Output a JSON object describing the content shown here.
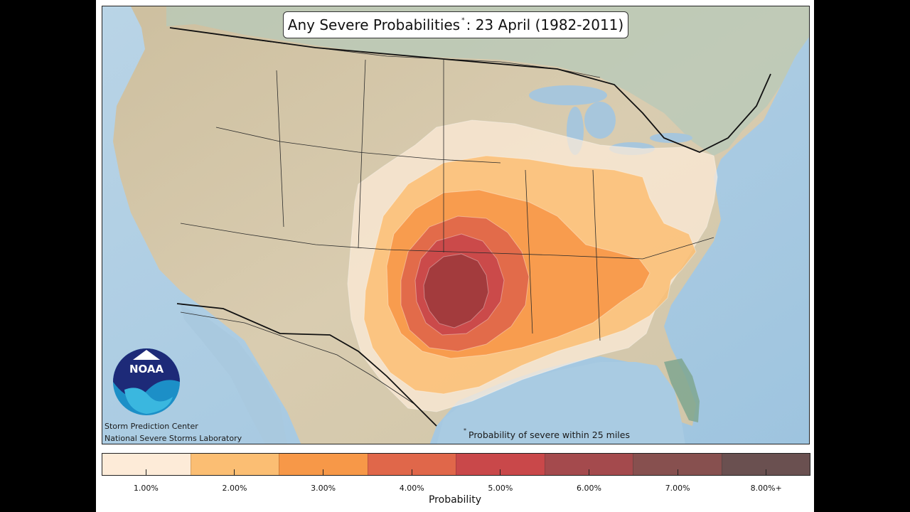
{
  "title": {
    "prefix": "Any Severe Probabilities",
    "marker": "*",
    "suffix": ": 23 April (1982-2011)"
  },
  "credits": {
    "line1": "Storm Prediction Center",
    "line2": "National Severe Storms Laboratory"
  },
  "logo": {
    "text": "NOAA",
    "icon": "noaa-logo"
  },
  "footnote": {
    "marker": "*",
    "text": "Probability of severe within 25 miles"
  },
  "colorbar": {
    "title": "Probability",
    "ticks": [
      "1.00%",
      "2.00%",
      "3.00%",
      "4.00%",
      "5.00%",
      "6.00%",
      "7.00%",
      "8.00%+"
    ],
    "colors": [
      "#fdebd8",
      "#fbbe73",
      "#f79848",
      "#e0674a",
      "#c9484a",
      "#a44a4d",
      "#87504f",
      "#6a5050"
    ]
  },
  "map_colors": {
    "ocean": "#c6dcea",
    "land": "#d8cfb6",
    "land_north": "#b9cdc2"
  }
}
